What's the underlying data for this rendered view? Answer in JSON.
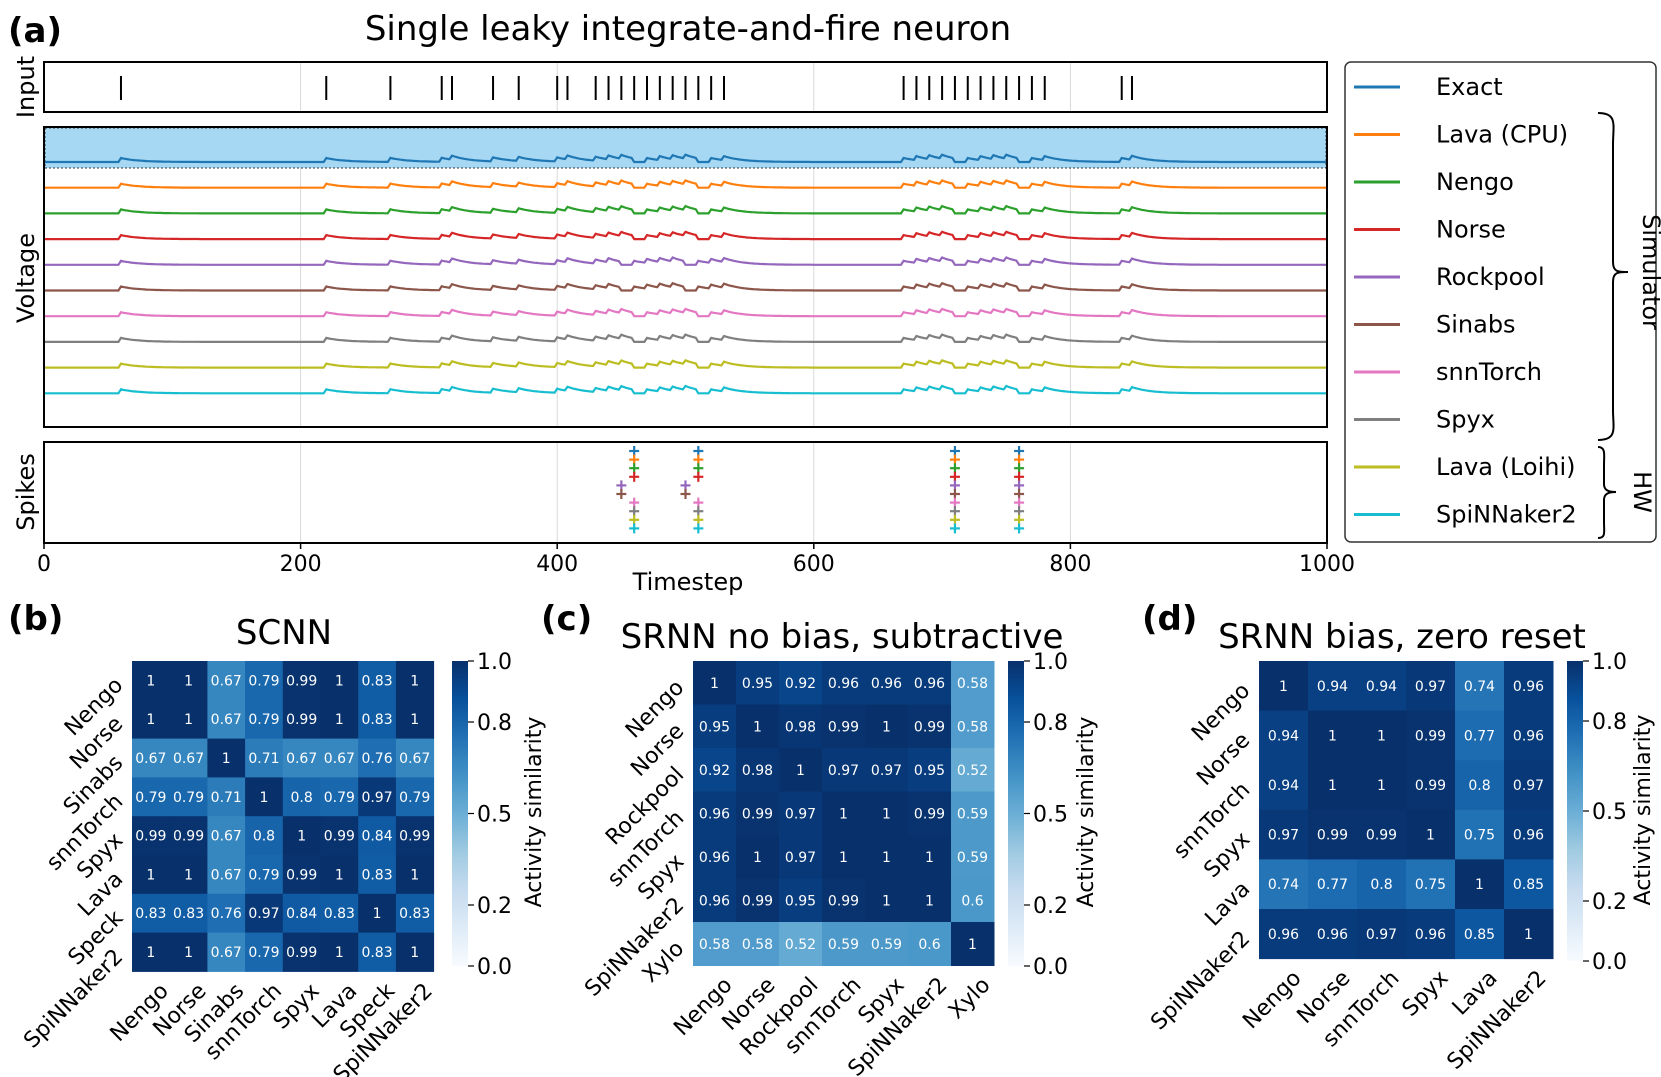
{
  "panel_a": {
    "letter": "(a)",
    "title": "Single leaky integrate-and-fire neuron",
    "input_label": "Input",
    "voltage_label": "Voltage",
    "spikes_label": "Spikes",
    "xlabel": "Timestep",
    "xticks": [
      "0",
      "200",
      "400",
      "600",
      "800",
      "1000"
    ],
    "legend": [
      {
        "label": "Exact",
        "color": "#1f77b4"
      },
      {
        "label": "Lava (CPU)",
        "color": "#ff7f0e"
      },
      {
        "label": "Nengo",
        "color": "#2ca02c"
      },
      {
        "label": "Norse",
        "color": "#d62728"
      },
      {
        "label": "Rockpool",
        "color": "#9467bd"
      },
      {
        "label": "Sinabs",
        "color": "#8c564b"
      },
      {
        "label": "snnTorch",
        "color": "#e377c2"
      },
      {
        "label": "Spyx",
        "color": "#7f7f7f"
      },
      {
        "label": "Lava (Loihi)",
        "color": "#bcbd22"
      },
      {
        "label": "SpiNNaker2",
        "color": "#17becf"
      }
    ],
    "group_simulator": "Simulator",
    "group_hw": "HW"
  },
  "chart_data": [
    {
      "type": "line",
      "title": "Single leaky integrate-and-fire neuron",
      "xlabel": "Timestep",
      "xlim": [
        0,
        1000
      ],
      "input_spike_times": [
        60,
        220,
        270,
        310,
        318,
        350,
        370,
        400,
        408,
        430,
        440,
        450,
        460,
        470,
        480,
        490,
        500,
        510,
        520,
        530,
        670,
        680,
        690,
        700,
        710,
        720,
        730,
        740,
        750,
        760,
        770,
        780,
        840,
        848
      ],
      "output_spike_times": {
        "Exact": [
          460,
          510,
          710,
          760
        ],
        "Lava (CPU)": [
          460,
          510,
          710,
          760
        ],
        "Nengo": [
          460,
          510,
          710,
          760
        ],
        "Norse": [
          460,
          510,
          710,
          760
        ],
        "Rockpool": [
          450,
          500,
          710,
          760
        ],
        "Sinabs": [
          450,
          500,
          710,
          760
        ],
        "snnTorch": [
          460,
          510,
          710,
          760
        ],
        "Spyx": [
          460,
          510,
          710,
          760
        ],
        "Lava (Loihi)": [
          460,
          510,
          710,
          760
        ],
        "SpiNNaker2": [
          460,
          510,
          710,
          760
        ]
      },
      "series": [
        "Exact",
        "Lava (CPU)",
        "Nengo",
        "Norse",
        "Rockpool",
        "Sinabs",
        "snnTorch",
        "Spyx",
        "Lava (Loihi)",
        "SpiNNaker2"
      ]
    },
    {
      "type": "heatmap",
      "letter": "(b)",
      "title": "SCNN",
      "rows": [
        "Nengo",
        "Norse",
        "Sinabs",
        "snnTorch",
        "Spyx",
        "Lava",
        "Speck",
        "SpiNNaker2"
      ],
      "cols": [
        "Nengo",
        "Norse",
        "Sinabs",
        "snnTorch",
        "Spyx",
        "Lava",
        "Speck",
        "SpiNNaker2"
      ],
      "values": [
        [
          "1",
          "1",
          "0.67",
          "0.79",
          "0.99",
          "1",
          "0.83",
          "1"
        ],
        [
          "1",
          "1",
          "0.67",
          "0.79",
          "0.99",
          "1",
          "0.83",
          "1"
        ],
        [
          "0.67",
          "0.67",
          "1",
          "0.71",
          "0.67",
          "0.67",
          "0.76",
          "0.67"
        ],
        [
          "0.79",
          "0.79",
          "0.71",
          "1",
          "0.8",
          "0.79",
          "0.97",
          "0.79"
        ],
        [
          "0.99",
          "0.99",
          "0.67",
          "0.8",
          "1",
          "0.99",
          "0.84",
          "0.99"
        ],
        [
          "1",
          "1",
          "0.67",
          "0.79",
          "0.99",
          "1",
          "0.83",
          "1"
        ],
        [
          "0.83",
          "0.83",
          "0.76",
          "0.97",
          "0.84",
          "0.83",
          "1",
          "0.83"
        ],
        [
          "1",
          "1",
          "0.67",
          "0.79",
          "0.99",
          "1",
          "0.83",
          "1"
        ]
      ],
      "colorbar_label": "Activity similarity",
      "colorbar_ticks": [
        "0.0",
        "0.2",
        "0.5",
        "0.8",
        "1.0"
      ],
      "vlim": [
        0,
        1
      ]
    },
    {
      "type": "heatmap",
      "letter": "(c)",
      "title": "SRNN no bias, subtractive",
      "rows": [
        "Nengo",
        "Norse",
        "Rockpool",
        "snnTorch",
        "Spyx",
        "SpiNNaker2",
        "Xylo"
      ],
      "cols": [
        "Nengo",
        "Norse",
        "Rockpool",
        "snnTorch",
        "Spyx",
        "SpiNNaker2",
        "Xylo"
      ],
      "values": [
        [
          "1",
          "0.95",
          "0.92",
          "0.96",
          "0.96",
          "0.96",
          "0.58"
        ],
        [
          "0.95",
          "1",
          "0.98",
          "0.99",
          "1",
          "0.99",
          "0.58"
        ],
        [
          "0.92",
          "0.98",
          "1",
          "0.97",
          "0.97",
          "0.95",
          "0.52"
        ],
        [
          "0.96",
          "0.99",
          "0.97",
          "1",
          "1",
          "0.99",
          "0.59"
        ],
        [
          "0.96",
          "1",
          "0.97",
          "1",
          "1",
          "1",
          "0.59"
        ],
        [
          "0.96",
          "0.99",
          "0.95",
          "0.99",
          "1",
          "1",
          "0.6"
        ],
        [
          "0.58",
          "0.58",
          "0.52",
          "0.59",
          "0.59",
          "0.6",
          "1"
        ]
      ],
      "colorbar_label": "Activity similarity",
      "colorbar_ticks": [
        "0.0",
        "0.2",
        "0.5",
        "0.8",
        "1.0"
      ],
      "vlim": [
        0,
        1
      ]
    },
    {
      "type": "heatmap",
      "letter": "(d)",
      "title": "SRNN bias, zero reset",
      "rows": [
        "Nengo",
        "Norse",
        "snnTorch",
        "Spyx",
        "Lava",
        "SpiNNaker2"
      ],
      "cols": [
        "Nengo",
        "Norse",
        "snnTorch",
        "Spyx",
        "Lava",
        "SpiNNaker2"
      ],
      "values": [
        [
          "1",
          "0.94",
          "0.94",
          "0.97",
          "0.74",
          "0.96"
        ],
        [
          "0.94",
          "1",
          "1",
          "0.99",
          "0.77",
          "0.96"
        ],
        [
          "0.94",
          "1",
          "1",
          "0.99",
          "0.8",
          "0.97"
        ],
        [
          "0.97",
          "0.99",
          "0.99",
          "1",
          "0.75",
          "0.96"
        ],
        [
          "0.74",
          "0.77",
          "0.8",
          "0.75",
          "1",
          "0.85"
        ],
        [
          "0.96",
          "0.96",
          "0.97",
          "0.96",
          "0.85",
          "1"
        ]
      ],
      "colorbar_label": "Activity similarity",
      "colorbar_ticks": [
        "0.0",
        "0.2",
        "0.5",
        "0.8",
        "1.0"
      ],
      "vlim": [
        0,
        1
      ]
    }
  ]
}
